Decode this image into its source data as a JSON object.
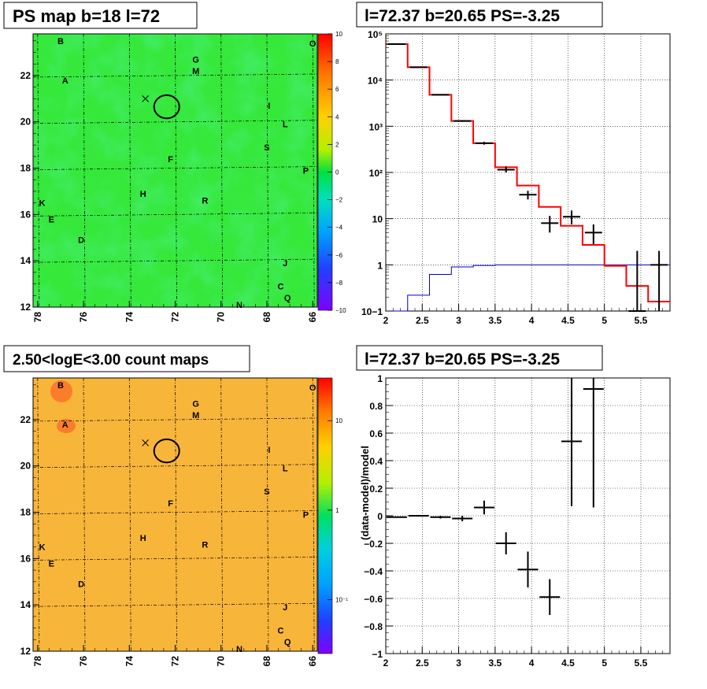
{
  "panels": {
    "ps_map_title": "PS map b=18 l=72",
    "spectrum_title": "l=72.37 b=20.65 PS=-3.25",
    "count_map_title": "2.50<logE<3.00 count maps",
    "residual_title": "l=72.37 b=20.65 PS=-3.25"
  },
  "colors": {
    "data": "#000000",
    "model": "#ff0000",
    "background_model": "#0000cc",
    "ps_map_fill": "#35e83a",
    "count_map_fill": "#f7b53a",
    "grid": "#000000"
  },
  "map_axes": {
    "x_ticks": [
      "78",
      "76",
      "74",
      "72",
      "70",
      "68",
      "66"
    ],
    "y_ticks": [
      "12",
      "14",
      "16",
      "18",
      "20",
      "22"
    ],
    "x_range": [
      78.2,
      65.8
    ],
    "y_range": [
      12,
      23.8
    ]
  },
  "map_sources": [
    {
      "label": "B",
      "l": 77.0,
      "b": 23.5
    },
    {
      "label": "A",
      "l": 76.8,
      "b": 21.8
    },
    {
      "label": "G",
      "l": 71.1,
      "b": 22.7
    },
    {
      "label": "M",
      "l": 71.1,
      "b": 22.2
    },
    {
      "label": "O",
      "l": 66.0,
      "b": 23.4
    },
    {
      "label": "I",
      "l": 67.9,
      "b": 20.7
    },
    {
      "label": "L",
      "l": 67.2,
      "b": 19.9
    },
    {
      "label": "S",
      "l": 68.0,
      "b": 18.9
    },
    {
      "label": "F",
      "l": 72.2,
      "b": 18.4
    },
    {
      "label": "P",
      "l": 66.3,
      "b": 17.9
    },
    {
      "label": "H",
      "l": 73.4,
      "b": 16.9
    },
    {
      "label": "R",
      "l": 70.7,
      "b": 16.6
    },
    {
      "label": "K",
      "l": 77.8,
      "b": 16.5
    },
    {
      "label": "E",
      "l": 77.4,
      "b": 15.8
    },
    {
      "label": "D",
      "l": 76.1,
      "b": 14.9
    },
    {
      "label": "J",
      "l": 67.2,
      "b": 13.9
    },
    {
      "label": "C",
      "l": 67.4,
      "b": 12.9
    },
    {
      "label": "Q",
      "l": 67.1,
      "b": 12.4
    },
    {
      "label": "N",
      "l": 69.2,
      "b": 12.1
    }
  ],
  "map_markers": {
    "circle": {
      "l": 72.37,
      "b": 20.65,
      "radius_deg": 0.55
    },
    "cross": {
      "l": 73.3,
      "b": 21.0
    }
  },
  "chart_data": [
    {
      "type": "heatmap",
      "title": "PS map b=18 l=72",
      "xlabel": "",
      "ylabel": "",
      "colorbar": {
        "scale": "linear",
        "range": [
          -10,
          10
        ],
        "ticks": [
          "10",
          "8",
          "6",
          "4",
          "2",
          "0",
          "−2",
          "−4",
          "−6",
          "−8",
          "−10"
        ]
      }
    },
    {
      "type": "line",
      "title": "l=72.37 b=20.65 PS=-3.25",
      "xlabel": "",
      "ylabel": "",
      "x_ticks": [
        "2",
        "2.5",
        "3",
        "3.5",
        "4",
        "4.5",
        "5",
        "5.5"
      ],
      "y_ticks": [
        "10−1",
        "1",
        "10",
        "10²",
        "10³",
        "10⁴",
        "10⁵"
      ],
      "xlim": [
        2.0,
        5.9
      ],
      "ylim": [
        0.1,
        100000
      ],
      "yscale": "log",
      "grid": true,
      "series": [
        {
          "role": "model",
          "bin_edges": [
            2.0,
            2.3,
            2.6,
            2.9,
            3.2,
            3.5,
            3.8,
            4.1,
            4.4,
            4.7,
            5.0,
            5.3,
            5.6,
            5.9
          ],
          "values": [
            60000,
            19000,
            4800,
            1300,
            430,
            130,
            52,
            18,
            7.0,
            2.7,
            0.95,
            0.35,
            0.16
          ]
        },
        {
          "role": "background_model",
          "bin_edges": [
            2.0,
            2.3,
            2.6,
            2.9,
            3.2,
            3.5,
            3.8,
            4.1,
            4.4,
            4.7,
            5.0,
            5.3,
            5.6,
            5.9
          ],
          "values": [
            0.06,
            0.22,
            0.62,
            0.9,
            0.97,
            1.0,
            1.0,
            1.0,
            1.0,
            1.0,
            1.0,
            1.0,
            1.0
          ]
        },
        {
          "role": "data",
          "points": [
            {
              "x": 2.15,
              "y": 60000,
              "ylo": 60000,
              "yhi": 60000
            },
            {
              "x": 2.45,
              "y": 19000,
              "ylo": 19000,
              "yhi": 19000
            },
            {
              "x": 2.75,
              "y": 4800,
              "ylo": 4800,
              "yhi": 4800
            },
            {
              "x": 3.05,
              "y": 1300,
              "ylo": 1250,
              "yhi": 1350
            },
            {
              "x": 3.35,
              "y": 430,
              "ylo": 400,
              "yhi": 460
            },
            {
              "x": 3.65,
              "y": 115,
              "ylo": 100,
              "yhi": 135
            },
            {
              "x": 3.95,
              "y": 33,
              "ylo": 26,
              "yhi": 40
            },
            {
              "x": 4.25,
              "y": 8.0,
              "ylo": 5.0,
              "yhi": 11.5
            },
            {
              "x": 4.55,
              "y": 11,
              "ylo": 7.5,
              "yhi": 15
            },
            {
              "x": 4.85,
              "y": 5.0,
              "ylo": 2.8,
              "yhi": 7.5
            },
            {
              "x": 5.45,
              "y": 0.1,
              "ylo": 0.1,
              "yhi": 2.0
            },
            {
              "x": 5.75,
              "y": 1.0,
              "ylo": 0.1,
              "yhi": 2.0
            }
          ]
        }
      ]
    },
    {
      "type": "heatmap",
      "title": "2.50<logE<3.00 count maps",
      "xlabel": "",
      "ylabel": "",
      "colorbar": {
        "scale": "log",
        "range": [
          0.025,
          30
        ],
        "ticks": [
          "10",
          "1",
          "10⁻¹"
        ]
      }
    },
    {
      "type": "scatter",
      "title": "l=72.37 b=20.65 PS=-3.25",
      "xlabel": "",
      "ylabel": "(data-model)/model",
      "x_ticks": [
        "2",
        "2.5",
        "3",
        "3.5",
        "4",
        "4.5",
        "5",
        "5.5"
      ],
      "y_ticks": [
        "−1",
        "−0.8",
        "−0.6",
        "−0.4",
        "−0.2",
        "0",
        "0.2",
        "0.4",
        "0.6",
        "0.8",
        "1"
      ],
      "xlim": [
        2.0,
        5.9
      ],
      "ylim": [
        -1,
        1
      ],
      "grid": true,
      "points": [
        {
          "x": 2.15,
          "y": -0.01,
          "err": 0.004
        },
        {
          "x": 2.45,
          "y": 0.0,
          "err": 0.006
        },
        {
          "x": 2.75,
          "y": -0.01,
          "err": 0.01
        },
        {
          "x": 3.05,
          "y": -0.02,
          "err": 0.02
        },
        {
          "x": 3.35,
          "y": 0.06,
          "err": 0.05
        },
        {
          "x": 3.65,
          "y": -0.2,
          "err": 0.08
        },
        {
          "x": 3.95,
          "y": -0.39,
          "err": 0.13
        },
        {
          "x": 4.25,
          "y": -0.59,
          "err": 0.13
        },
        {
          "x": 4.55,
          "y": 0.54,
          "err": 0.47
        },
        {
          "x": 4.85,
          "y": 0.92,
          "err": 0.86
        }
      ]
    }
  ]
}
